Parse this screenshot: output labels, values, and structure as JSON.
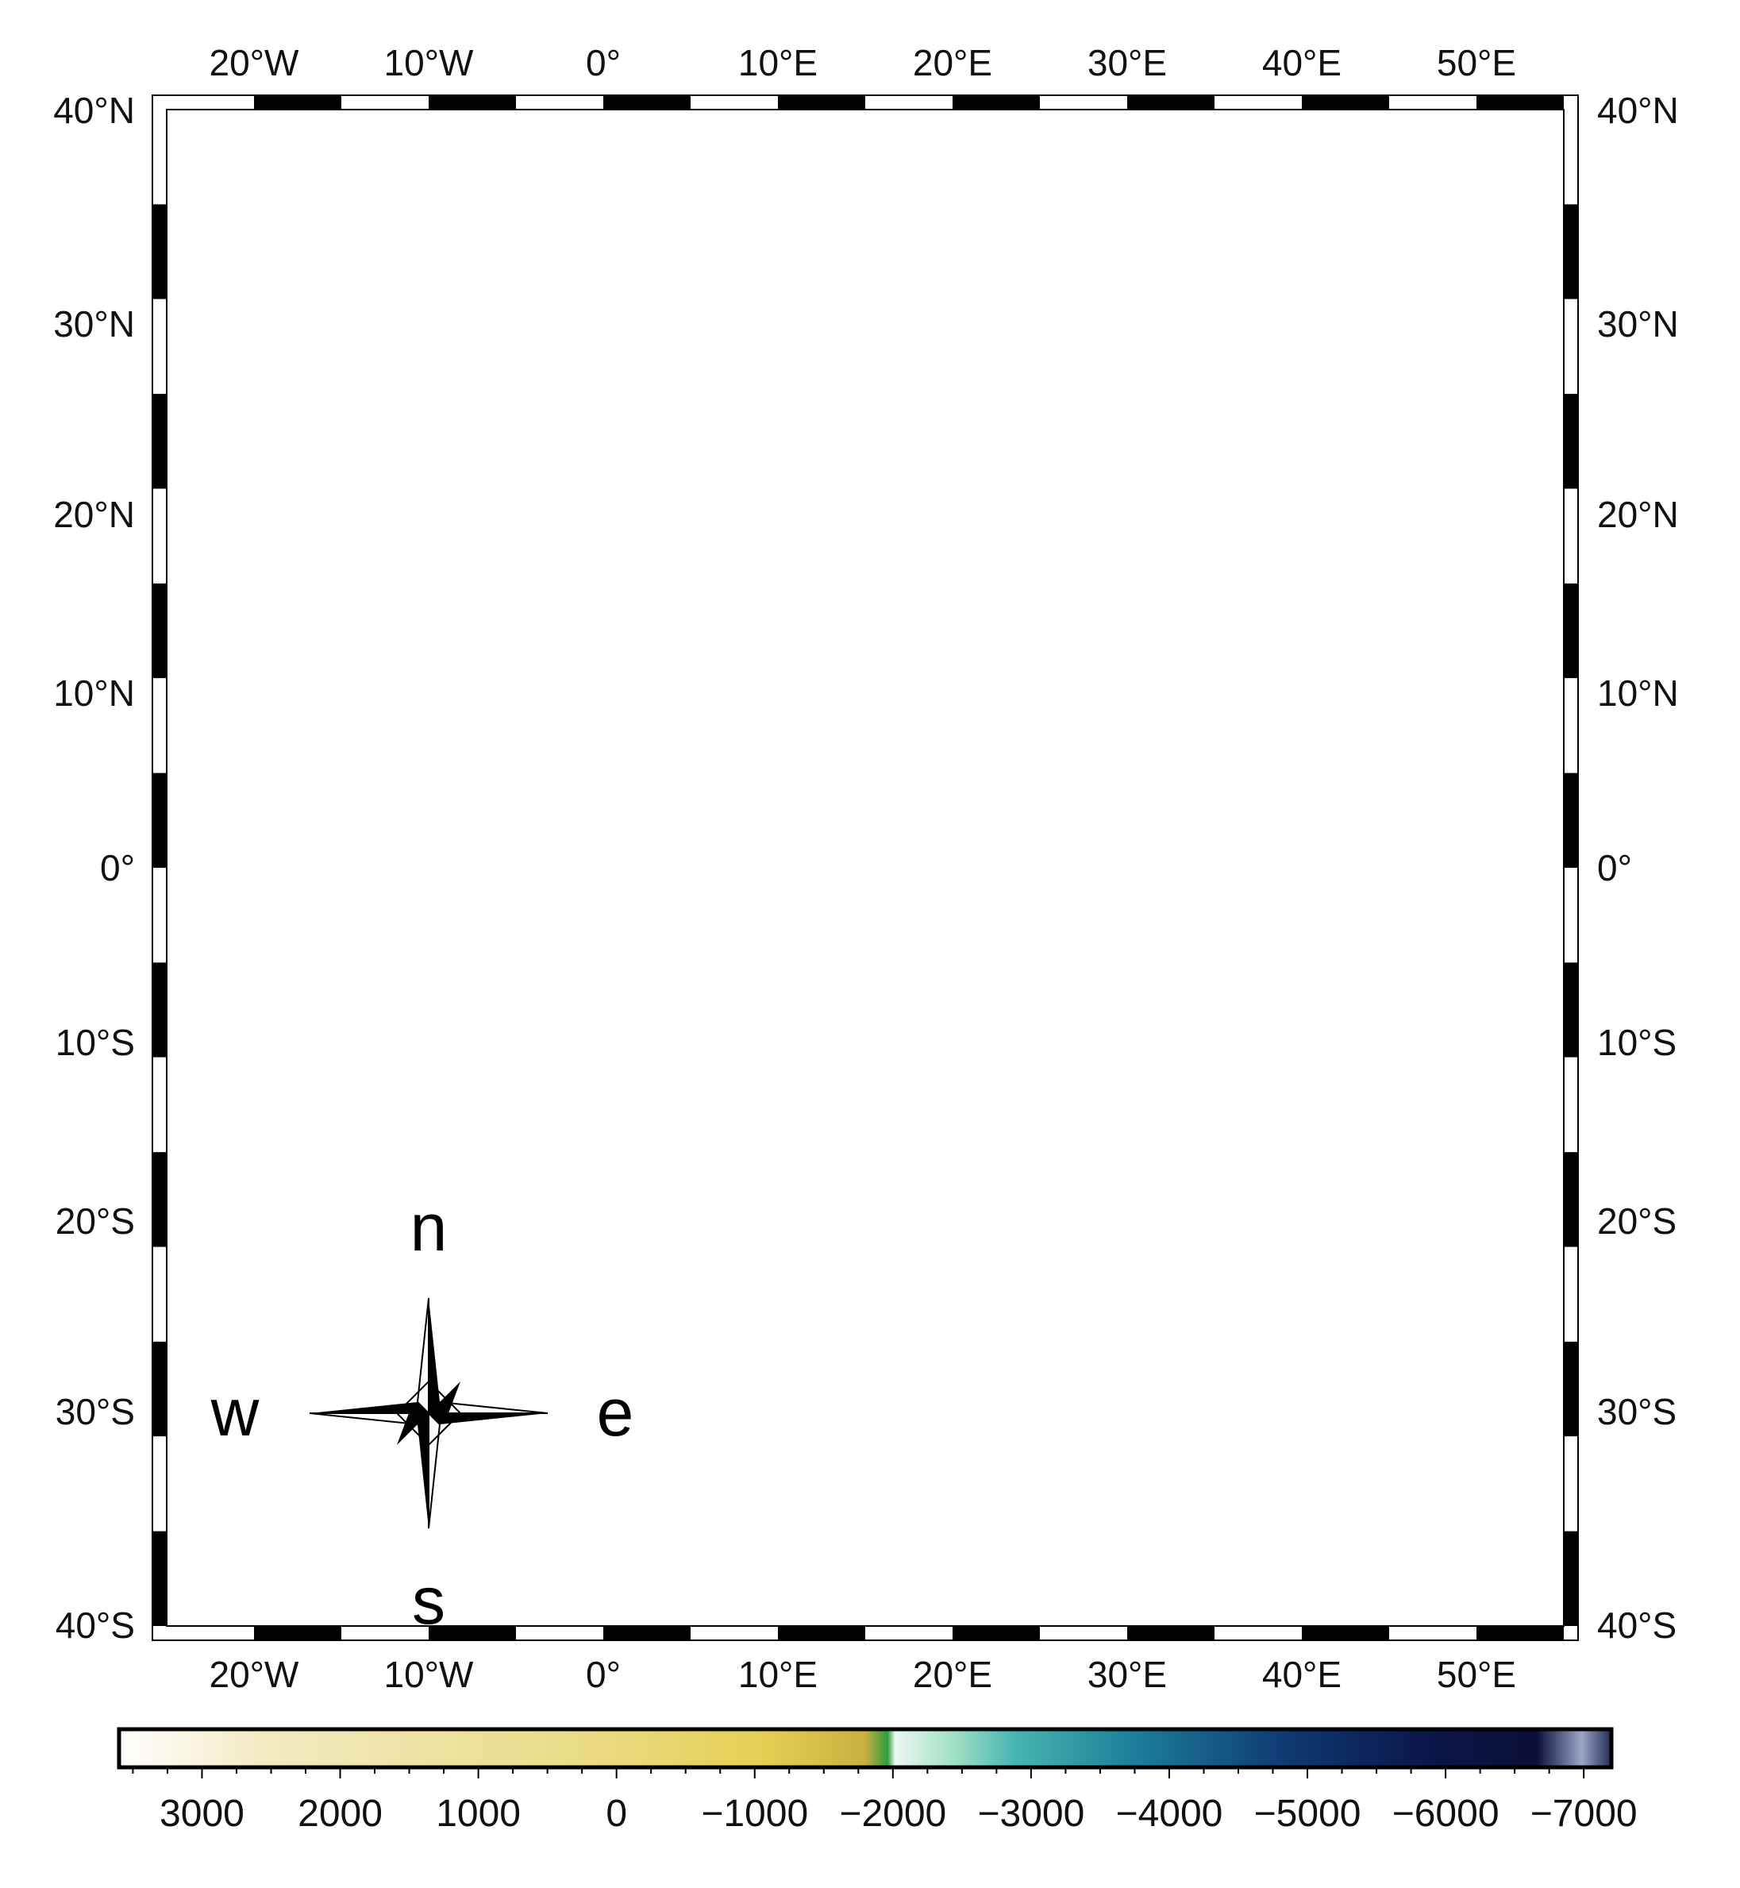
{
  "map": {
    "lon_range": [
      -25,
      55
    ],
    "lat_range": [
      -40,
      40
    ],
    "frame_interval_deg": 5,
    "colors": {
      "ocean_deep": "#0a1240",
      "ocean_mid": "#1e5f86",
      "ocean_shallow": "#9ad9c6",
      "land": "#f1e3a0",
      "land_shade": "#cdbf84",
      "coast": "#000000",
      "rivers": "#1c1cff",
      "borders": "#333333"
    },
    "top_lon_labels": [
      "20°W",
      "10°W",
      "0°",
      "10°E",
      "20°E",
      "30°E",
      "40°E",
      "50°E"
    ],
    "bottom_lon_labels": [
      "20°W",
      "10°W",
      "0°",
      "10°E",
      "20°E",
      "30°E",
      "40°E",
      "50°E"
    ],
    "left_lat_labels": [
      "40°N",
      "30°N",
      "20°N",
      "10°N",
      "0°",
      "10°S",
      "20°S",
      "30°S",
      "40°S"
    ],
    "right_lat_labels": [
      "40°N",
      "30°N",
      "20°N",
      "10°N",
      "0°",
      "10°S",
      "20°S",
      "30°S",
      "40°S"
    ]
  },
  "compass": {
    "n": "n",
    "s": "s",
    "e": "e",
    "w": "w"
  },
  "colorbar": {
    "labels": [
      "3000",
      "2000",
      "1000",
      "0",
      "−1000",
      "−2000",
      "−3000",
      "−4000",
      "−5000",
      "−6000",
      "−7000"
    ],
    "range": [
      3600,
      -7200
    ]
  }
}
